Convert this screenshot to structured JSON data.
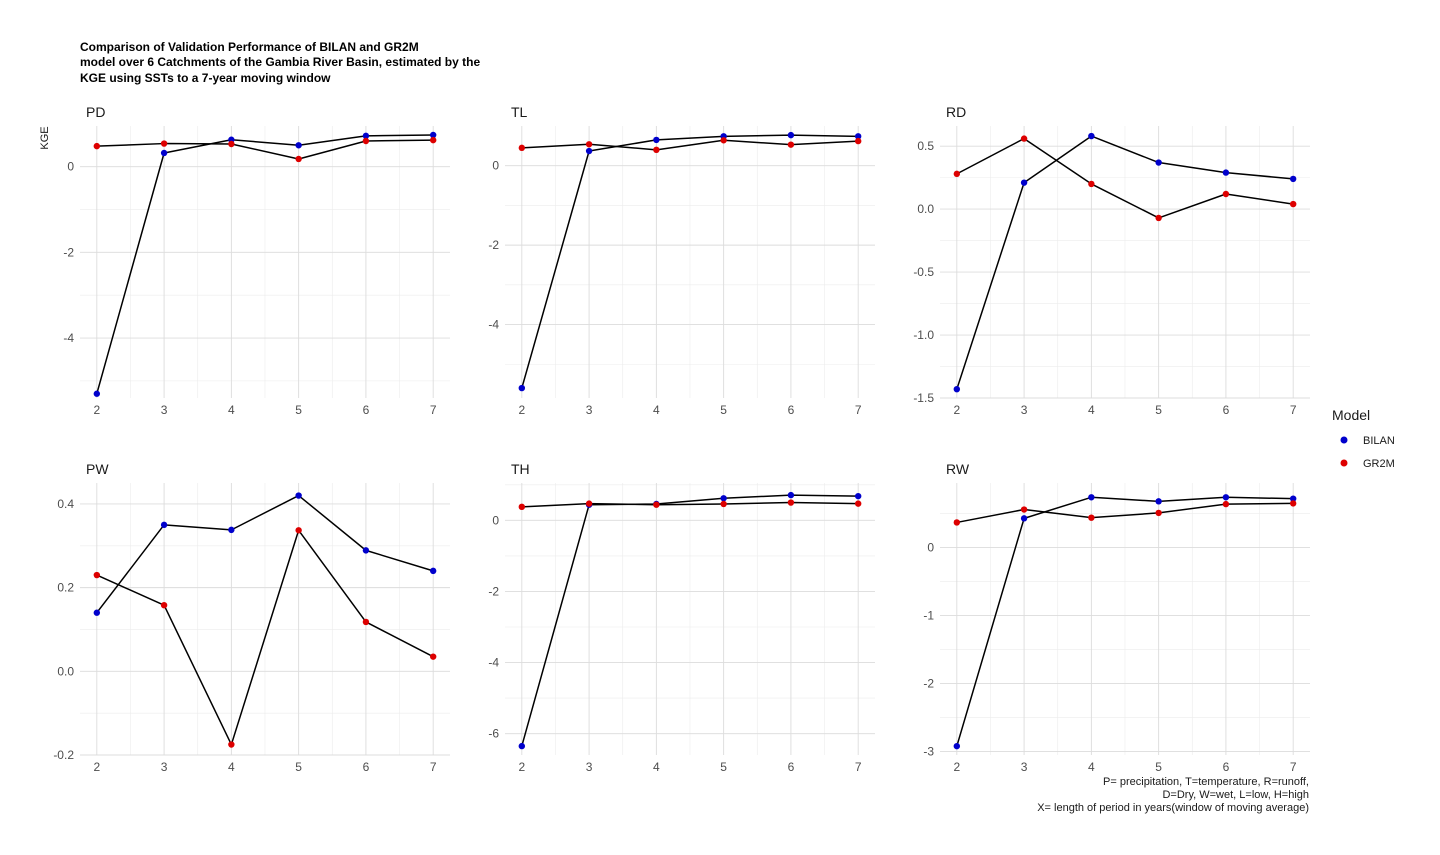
{
  "title_lines": [
    "Comparison of Validation Performance of BILAN and GR2M",
    "model over 6 Catchments of the Gambia River Basin, estimated by the",
    "KGE using SSTs to a 7-year moving window"
  ],
  "ylabel": "KGE",
  "legend": {
    "title": "Model",
    "items": [
      {
        "label": "BILAN",
        "color": "#0000cc"
      },
      {
        "label": "GR2M",
        "color": "#dd0000"
      }
    ]
  },
  "caption_lines": [
    "P= precipitation, T=temperature, R=runoff,",
    "D=Dry, W=wet, L=low, H=high",
    "X= length of period in years(window of moving average)"
  ],
  "chart_data": {
    "type": "line",
    "x": [
      2,
      3,
      4,
      5,
      6,
      7
    ],
    "series_names": [
      "BILAN",
      "GR2M"
    ],
    "colors": {
      "BILAN": "#0000cc",
      "GR2M": "#dd0000"
    },
    "panels": [
      {
        "title": "PD",
        "ylim": [
          -5.4,
          0.95
        ],
        "yticks": [
          0,
          -2,
          -4
        ],
        "ytick_labels": [
          "0",
          "-2",
          "-4"
        ],
        "series": [
          {
            "name": "BILAN",
            "values": [
              -5.3,
              0.32,
              0.63,
              0.5,
              0.72,
              0.74
            ]
          },
          {
            "name": "GR2M",
            "values": [
              0.48,
              0.54,
              0.53,
              0.18,
              0.6,
              0.62
            ]
          }
        ]
      },
      {
        "title": "TL",
        "ylim": [
          -5.85,
          1.0
        ],
        "yticks": [
          0,
          -2,
          -4
        ],
        "ytick_labels": [
          "0",
          "-2",
          "-4"
        ],
        "series": [
          {
            "name": "BILAN",
            "values": [
              -5.6,
              0.37,
              0.65,
              0.74,
              0.77,
              0.74
            ]
          },
          {
            "name": "GR2M",
            "values": [
              0.45,
              0.54,
              0.4,
              0.64,
              0.53,
              0.62
            ]
          }
        ]
      },
      {
        "title": "RD",
        "ylim": [
          -1.5,
          0.66
        ],
        "yticks": [
          0.5,
          0.0,
          -0.5,
          -1.0,
          -1.5
        ],
        "ytick_labels": [
          "0.5",
          "0.0",
          "-0.5",
          "-1.0",
          "-1.5"
        ],
        "series": [
          {
            "name": "BILAN",
            "values": [
              -1.43,
              0.21,
              0.58,
              0.37,
              0.29,
              0.24
            ]
          },
          {
            "name": "GR2M",
            "values": [
              0.28,
              0.56,
              0.2,
              -0.07,
              0.12,
              0.04
            ]
          }
        ]
      },
      {
        "title": "PW",
        "ylim": [
          -0.2,
          0.45
        ],
        "yticks": [
          0.4,
          0.2,
          0.0,
          -0.2
        ],
        "ytick_labels": [
          "0.4",
          "0.2",
          "0.0",
          "-0.2"
        ],
        "series": [
          {
            "name": "BILAN",
            "values": [
              0.14,
              0.35,
              0.338,
              0.42,
              0.289,
              0.24
            ]
          },
          {
            "name": "GR2M",
            "values": [
              0.23,
              0.158,
              -0.175,
              0.337,
              0.118,
              0.035
            ]
          }
        ]
      },
      {
        "title": "TH",
        "ylim": [
          -6.6,
          1.05
        ],
        "yticks": [
          0,
          -2,
          -4,
          -6
        ],
        "ytick_labels": [
          "0",
          "-2",
          "-4",
          "-6"
        ],
        "series": [
          {
            "name": "BILAN",
            "values": [
              -6.35,
              0.44,
              0.46,
              0.62,
              0.71,
              0.68
            ]
          },
          {
            "name": "GR2M",
            "values": [
              0.38,
              0.47,
              0.44,
              0.46,
              0.5,
              0.47
            ]
          }
        ]
      },
      {
        "title": "RW",
        "ylim": [
          -3.05,
          0.95
        ],
        "yticks": [
          0,
          -1,
          -2,
          -3
        ],
        "ytick_labels": [
          "0",
          "-1",
          "-2",
          "-3"
        ],
        "series": [
          {
            "name": "BILAN",
            "values": [
              -2.92,
              0.43,
              0.74,
              0.68,
              0.74,
              0.72
            ]
          },
          {
            "name": "GR2M",
            "values": [
              0.37,
              0.56,
              0.44,
              0.51,
              0.64,
              0.65
            ]
          }
        ]
      }
    ]
  }
}
